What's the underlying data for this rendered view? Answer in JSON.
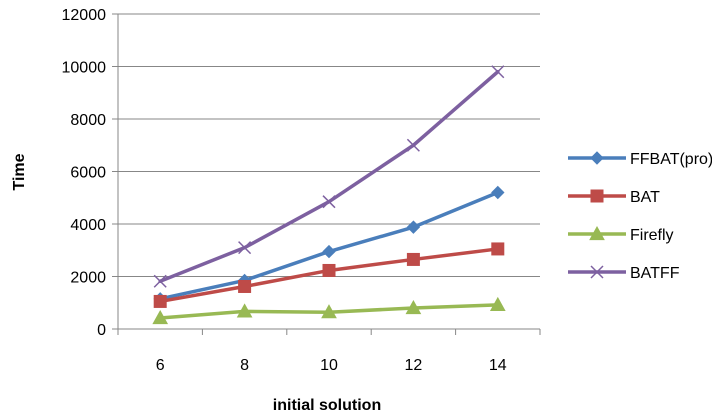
{
  "chart_data": {
    "type": "line",
    "x": [
      6,
      8,
      10,
      12,
      14
    ],
    "xlabel": "initial solution",
    "ylabel": "Time",
    "ylim": [
      0,
      12000
    ],
    "yticks": [
      0,
      2000,
      4000,
      6000,
      8000,
      10000,
      12000
    ],
    "grid": "horizontal",
    "legend_position": "right",
    "series": [
      {
        "name": "FFBAT(pro)",
        "values": [
          1150,
          1850,
          2950,
          3880,
          5200
        ],
        "color": "#4a7ebb",
        "marker": "diamond"
      },
      {
        "name": "BAT",
        "values": [
          1050,
          1620,
          2230,
          2650,
          3050
        ],
        "color": "#be4b48",
        "marker": "square"
      },
      {
        "name": "Firefly",
        "values": [
          420,
          670,
          640,
          800,
          920
        ],
        "color": "#98b954",
        "marker": "triangle"
      },
      {
        "name": "BATFF",
        "values": [
          1820,
          3100,
          4850,
          7000,
          9800
        ],
        "color": "#7d60a0",
        "marker": "x"
      }
    ]
  }
}
